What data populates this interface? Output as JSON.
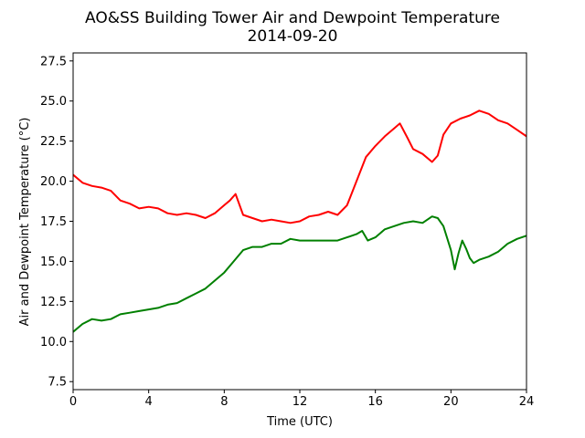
{
  "chart_data": {
    "type": "line",
    "title": "AO&SS Building Tower Air and Dewpoint Temperature",
    "subtitle": "2014-09-20",
    "xlabel": "Time (UTC)",
    "ylabel": "Air and Dewpoint Temperature (°C)",
    "xlim": [
      0,
      24
    ],
    "ylim": [
      7.0,
      28.0
    ],
    "x_ticks": [
      0,
      4,
      8,
      12,
      16,
      20,
      24
    ],
    "y_ticks": [
      7.5,
      10.0,
      12.5,
      15.0,
      17.5,
      20.0,
      22.5,
      25.0,
      27.5
    ],
    "grid": false,
    "legend": "none",
    "series": [
      {
        "color": "#ff0000",
        "x": [
          0,
          0.5,
          1,
          1.5,
          2,
          2.5,
          3,
          3.5,
          4,
          4.5,
          5,
          5.5,
          6,
          6.5,
          7,
          7.5,
          8,
          8.3,
          8.6,
          9,
          9.5,
          10,
          10.5,
          11,
          11.5,
          12,
          12.5,
          13,
          13.5,
          14,
          14.5,
          15,
          15.5,
          16,
          16.5,
          17,
          17.3,
          17.7,
          18,
          18.5,
          19,
          19.3,
          19.6,
          20,
          20.5,
          21,
          21.5,
          22,
          22.5,
          23,
          23.5,
          24
        ],
        "y": [
          20.4,
          19.9,
          19.7,
          19.6,
          19.4,
          18.8,
          18.6,
          18.3,
          18.4,
          18.3,
          18.0,
          17.9,
          18.0,
          17.9,
          17.7,
          18.0,
          18.5,
          18.8,
          19.2,
          17.9,
          17.7,
          17.5,
          17.6,
          17.5,
          17.4,
          17.5,
          17.8,
          17.9,
          18.1,
          17.9,
          18.5,
          20.0,
          21.5,
          22.2,
          22.8,
          23.3,
          23.6,
          22.7,
          22.0,
          21.7,
          21.2,
          21.6,
          22.9,
          23.6,
          23.9,
          24.1,
          24.4,
          24.2,
          23.8,
          23.6,
          23.2,
          22.8
        ]
      },
      {
        "color": "#008000",
        "x": [
          0,
          0.5,
          1,
          1.5,
          2,
          2.5,
          3,
          3.5,
          4,
          4.5,
          5,
          5.5,
          6,
          6.5,
          7,
          7.5,
          8,
          8.5,
          9,
          9.5,
          10,
          10.5,
          11,
          11.5,
          12,
          12.5,
          13,
          13.5,
          14,
          14.5,
          15,
          15.3,
          15.6,
          16,
          16.5,
          17,
          17.5,
          18,
          18.5,
          19,
          19.3,
          19.6,
          20,
          20.2,
          20.4,
          20.6,
          20.8,
          21,
          21.2,
          21.5,
          22,
          22.5,
          23,
          23.5,
          24
        ],
        "y": [
          10.6,
          11.1,
          11.4,
          11.3,
          11.4,
          11.7,
          11.8,
          11.9,
          12.0,
          12.1,
          12.3,
          12.4,
          12.7,
          13.0,
          13.3,
          13.8,
          14.3,
          15.0,
          15.7,
          15.9,
          15.9,
          16.1,
          16.1,
          16.4,
          16.3,
          16.3,
          16.3,
          16.3,
          16.3,
          16.5,
          16.7,
          16.9,
          16.3,
          16.5,
          17.0,
          17.2,
          17.4,
          17.5,
          17.4,
          17.8,
          17.7,
          17.2,
          15.7,
          14.5,
          15.5,
          16.3,
          15.8,
          15.2,
          14.9,
          15.1,
          15.3,
          15.6,
          16.1,
          16.4,
          16.6
        ]
      }
    ]
  }
}
